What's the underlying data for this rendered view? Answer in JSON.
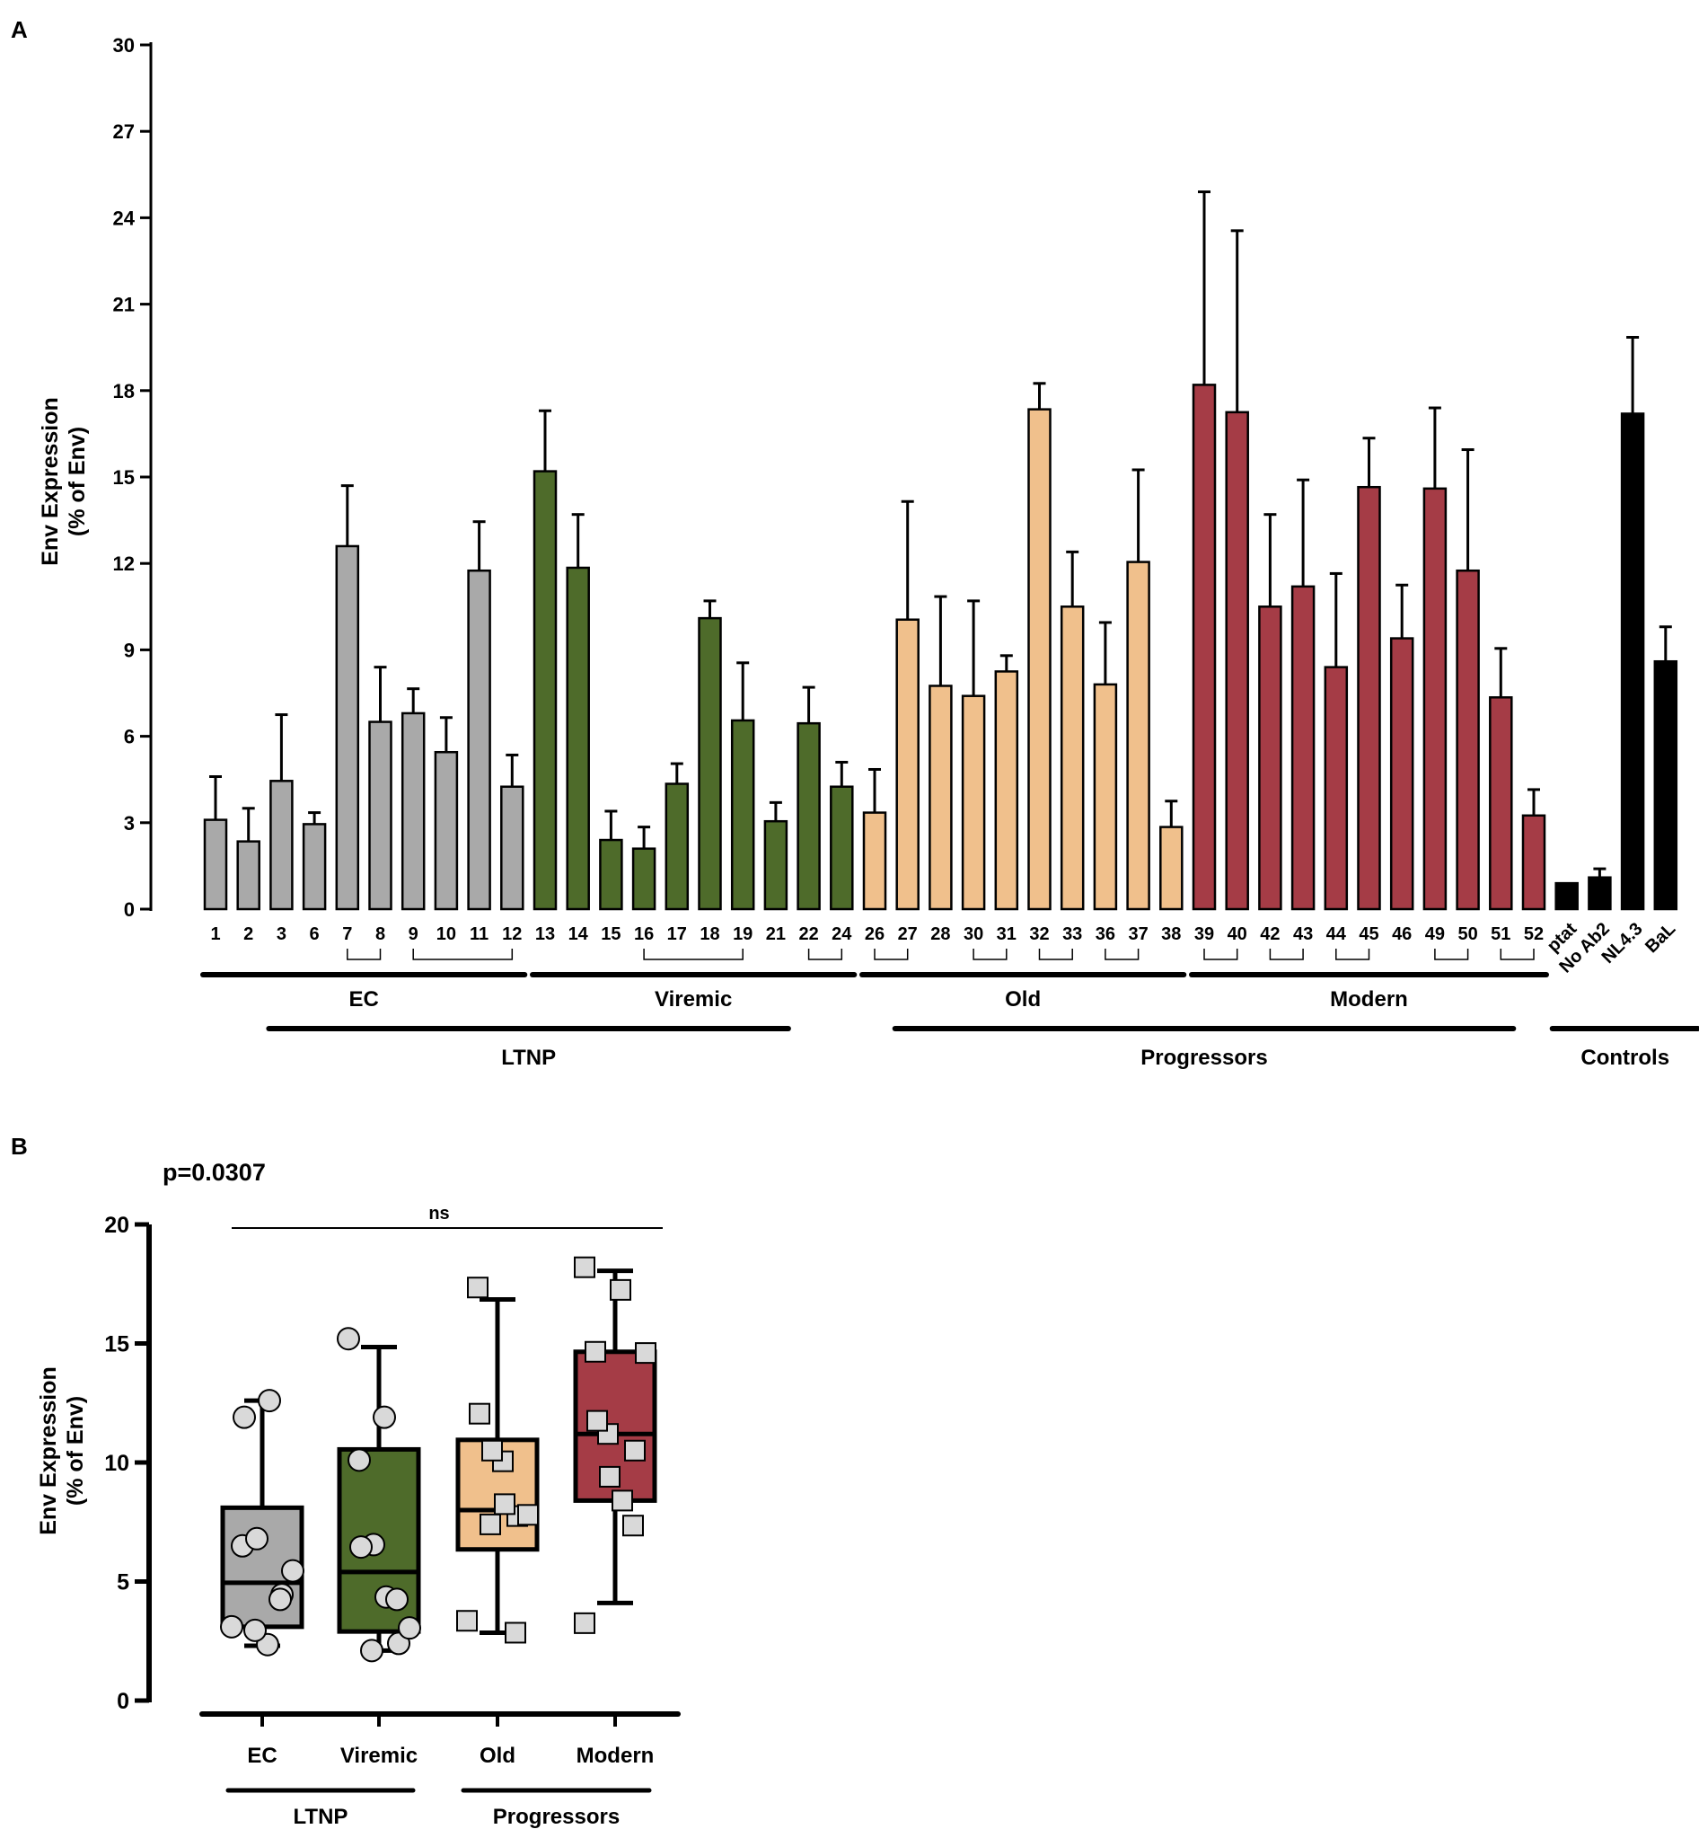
{
  "colors": {
    "EC": "#a9a9a9",
    "Viremic": "#4e6b2a",
    "Old": "#f0c08c",
    "Modern": "#a53c46",
    "Controls": "#000000",
    "pointFill": "#d9d9d9"
  },
  "chart_data": [
    {
      "panel": "A",
      "type": "bar",
      "ylabel_line1": "Env Expression",
      "ylabel_line2": "(% of Env)",
      "ylim": [
        0,
        30
      ],
      "yticks": [
        0,
        3,
        6,
        9,
        12,
        15,
        18,
        21,
        24,
        27,
        30
      ],
      "bars": [
        {
          "label": "1",
          "group": "EC",
          "value": 3.1,
          "err": 1.5
        },
        {
          "label": "2",
          "group": "EC",
          "value": 2.35,
          "err": 1.15
        },
        {
          "label": "3",
          "group": "EC",
          "value": 4.45,
          "err": 2.3
        },
        {
          "label": "6",
          "group": "EC",
          "value": 2.95,
          "err": 0.4
        },
        {
          "label": "7",
          "group": "EC",
          "value": 12.6,
          "err": 2.1
        },
        {
          "label": "8",
          "group": "EC",
          "value": 6.5,
          "err": 1.9
        },
        {
          "label": "9",
          "group": "EC",
          "value": 6.8,
          "err": 0.85
        },
        {
          "label": "10",
          "group": "EC",
          "value": 5.45,
          "err": 1.2
        },
        {
          "label": "11",
          "group": "EC",
          "value": 11.75,
          "err": 1.7
        },
        {
          "label": "12",
          "group": "EC",
          "value": 4.25,
          "err": 1.1
        },
        {
          "label": "13",
          "group": "Viremic",
          "value": 15.2,
          "err": 2.1
        },
        {
          "label": "14",
          "group": "Viremic",
          "value": 11.85,
          "err": 1.85
        },
        {
          "label": "15",
          "group": "Viremic",
          "value": 2.4,
          "err": 1.0
        },
        {
          "label": "16",
          "group": "Viremic",
          "value": 2.1,
          "err": 0.75
        },
        {
          "label": "17",
          "group": "Viremic",
          "value": 4.35,
          "err": 0.7
        },
        {
          "label": "18",
          "group": "Viremic",
          "value": 10.1,
          "err": 0.6
        },
        {
          "label": "19",
          "group": "Viremic",
          "value": 6.55,
          "err": 2.0
        },
        {
          "label": "21",
          "group": "Viremic",
          "value": 3.05,
          "err": 0.65
        },
        {
          "label": "22",
          "group": "Viremic",
          "value": 6.45,
          "err": 1.25
        },
        {
          "label": "24",
          "group": "Viremic",
          "value": 4.25,
          "err": 0.85
        },
        {
          "label": "26",
          "group": "Old",
          "value": 3.35,
          "err": 1.5
        },
        {
          "label": "27",
          "group": "Old",
          "value": 10.05,
          "err": 4.1
        },
        {
          "label": "28",
          "group": "Old",
          "value": 7.75,
          "err": 3.1
        },
        {
          "label": "30",
          "group": "Old",
          "value": 7.4,
          "err": 3.3
        },
        {
          "label": "31",
          "group": "Old",
          "value": 8.25,
          "err": 0.55
        },
        {
          "label": "32",
          "group": "Old",
          "value": 17.35,
          "err": 0.9
        },
        {
          "label": "33",
          "group": "Old",
          "value": 10.5,
          "err": 1.9
        },
        {
          "label": "36",
          "group": "Old",
          "value": 7.8,
          "err": 2.15
        },
        {
          "label": "37",
          "group": "Old",
          "value": 12.05,
          "err": 3.2
        },
        {
          "label": "38",
          "group": "Old",
          "value": 2.85,
          "err": 0.9
        },
        {
          "label": "39",
          "group": "Modern",
          "value": 18.2,
          "err": 6.7
        },
        {
          "label": "40",
          "group": "Modern",
          "value": 17.25,
          "err": 6.3
        },
        {
          "label": "42",
          "group": "Modern",
          "value": 10.5,
          "err": 3.2
        },
        {
          "label": "43",
          "group": "Modern",
          "value": 11.2,
          "err": 3.7
        },
        {
          "label": "44",
          "group": "Modern",
          "value": 8.4,
          "err": 3.25
        },
        {
          "label": "45",
          "group": "Modern",
          "value": 14.65,
          "err": 1.7
        },
        {
          "label": "46",
          "group": "Modern",
          "value": 9.4,
          "err": 1.85
        },
        {
          "label": "49",
          "group": "Modern",
          "value": 14.6,
          "err": 2.8
        },
        {
          "label": "50",
          "group": "Modern",
          "value": 11.75,
          "err": 4.2
        },
        {
          "label": "51",
          "group": "Modern",
          "value": 7.35,
          "err": 1.7
        },
        {
          "label": "52",
          "group": "Modern",
          "value": 3.25,
          "err": 0.9
        },
        {
          "label": "ptat",
          "group": "Controls",
          "value": 0.9,
          "err": 0.0
        },
        {
          "label": "No Ab2",
          "group": "Controls",
          "value": 1.1,
          "err": 0.3
        },
        {
          "label": "NL4.3",
          "group": "Controls",
          "value": 17.2,
          "err": 2.65
        },
        {
          "label": "BaL",
          "group": "Controls",
          "value": 8.6,
          "err": 1.2
        }
      ],
      "pairs": [
        [
          "7",
          "8"
        ],
        [
          "9",
          "12"
        ],
        [
          "16",
          "19"
        ],
        [
          "22",
          "24"
        ],
        [
          "26",
          "27"
        ],
        [
          "30",
          "31"
        ],
        [
          "32",
          "33"
        ],
        [
          "36",
          "37"
        ],
        [
          "39",
          "40"
        ],
        [
          "42",
          "43"
        ],
        [
          "44",
          "45"
        ],
        [
          "49",
          "50"
        ],
        [
          "51",
          "52"
        ]
      ],
      "groups": [
        {
          "name": "EC",
          "from": "1",
          "to": "12"
        },
        {
          "name": "Viremic",
          "from": "13",
          "to": "24"
        },
        {
          "name": "Old",
          "from": "26",
          "to": "38"
        },
        {
          "name": "Modern",
          "from": "39",
          "to": "52"
        }
      ],
      "supergroups": [
        {
          "name": "LTNP",
          "from": "3",
          "to": "21"
        },
        {
          "name": "Progressors",
          "from": "27",
          "to": "51"
        },
        {
          "name": "Controls",
          "from": "ptat",
          "to": "BaL"
        }
      ]
    },
    {
      "panel": "B",
      "type": "box",
      "pvalue": "p=0.0307",
      "significance": "ns",
      "ylabel_line1": "Env Expression",
      "ylabel_line2": "(% of Env)",
      "ylim": [
        0,
        20
      ],
      "yticks": [
        0,
        5,
        10,
        15,
        20
      ],
      "categories": [
        "EC",
        "Viremic",
        "Old",
        "Modern"
      ],
      "boxes": [
        {
          "name": "EC",
          "min": 2.3,
          "q1": 3.1,
          "median": 4.95,
          "q3": 8.1,
          "max": 12.6,
          "marker": "circle",
          "points": [
            3.1,
            2.35,
            4.45,
            2.95,
            12.6,
            6.5,
            6.8,
            5.45,
            11.9,
            4.25
          ]
        },
        {
          "name": "Viremic",
          "min": 2.1,
          "q1": 2.9,
          "median": 5.4,
          "q3": 10.55,
          "max": 14.85,
          "marker": "circle",
          "points": [
            15.2,
            11.9,
            2.4,
            2.1,
            4.35,
            10.1,
            6.55,
            3.05,
            6.45,
            4.25
          ]
        },
        {
          "name": "Old",
          "min": 2.85,
          "q1": 6.35,
          "median": 8.0,
          "q3": 10.95,
          "max": 16.85,
          "marker": "square",
          "points": [
            3.35,
            10.05,
            7.75,
            7.4,
            8.25,
            17.35,
            10.5,
            7.8,
            12.05,
            2.85
          ]
        },
        {
          "name": "Modern",
          "min": 4.1,
          "q1": 8.4,
          "median": 11.2,
          "q3": 14.65,
          "max": 18.05,
          "marker": "square",
          "points": [
            18.2,
            17.25,
            10.5,
            11.2,
            8.4,
            14.65,
            9.4,
            14.6,
            11.75,
            7.35,
            3.25
          ]
        }
      ],
      "supergroups": [
        {
          "name": "LTNP",
          "from": "EC",
          "to": "Viremic"
        },
        {
          "name": "Progressors",
          "from": "Old",
          "to": "Modern"
        }
      ]
    }
  ]
}
